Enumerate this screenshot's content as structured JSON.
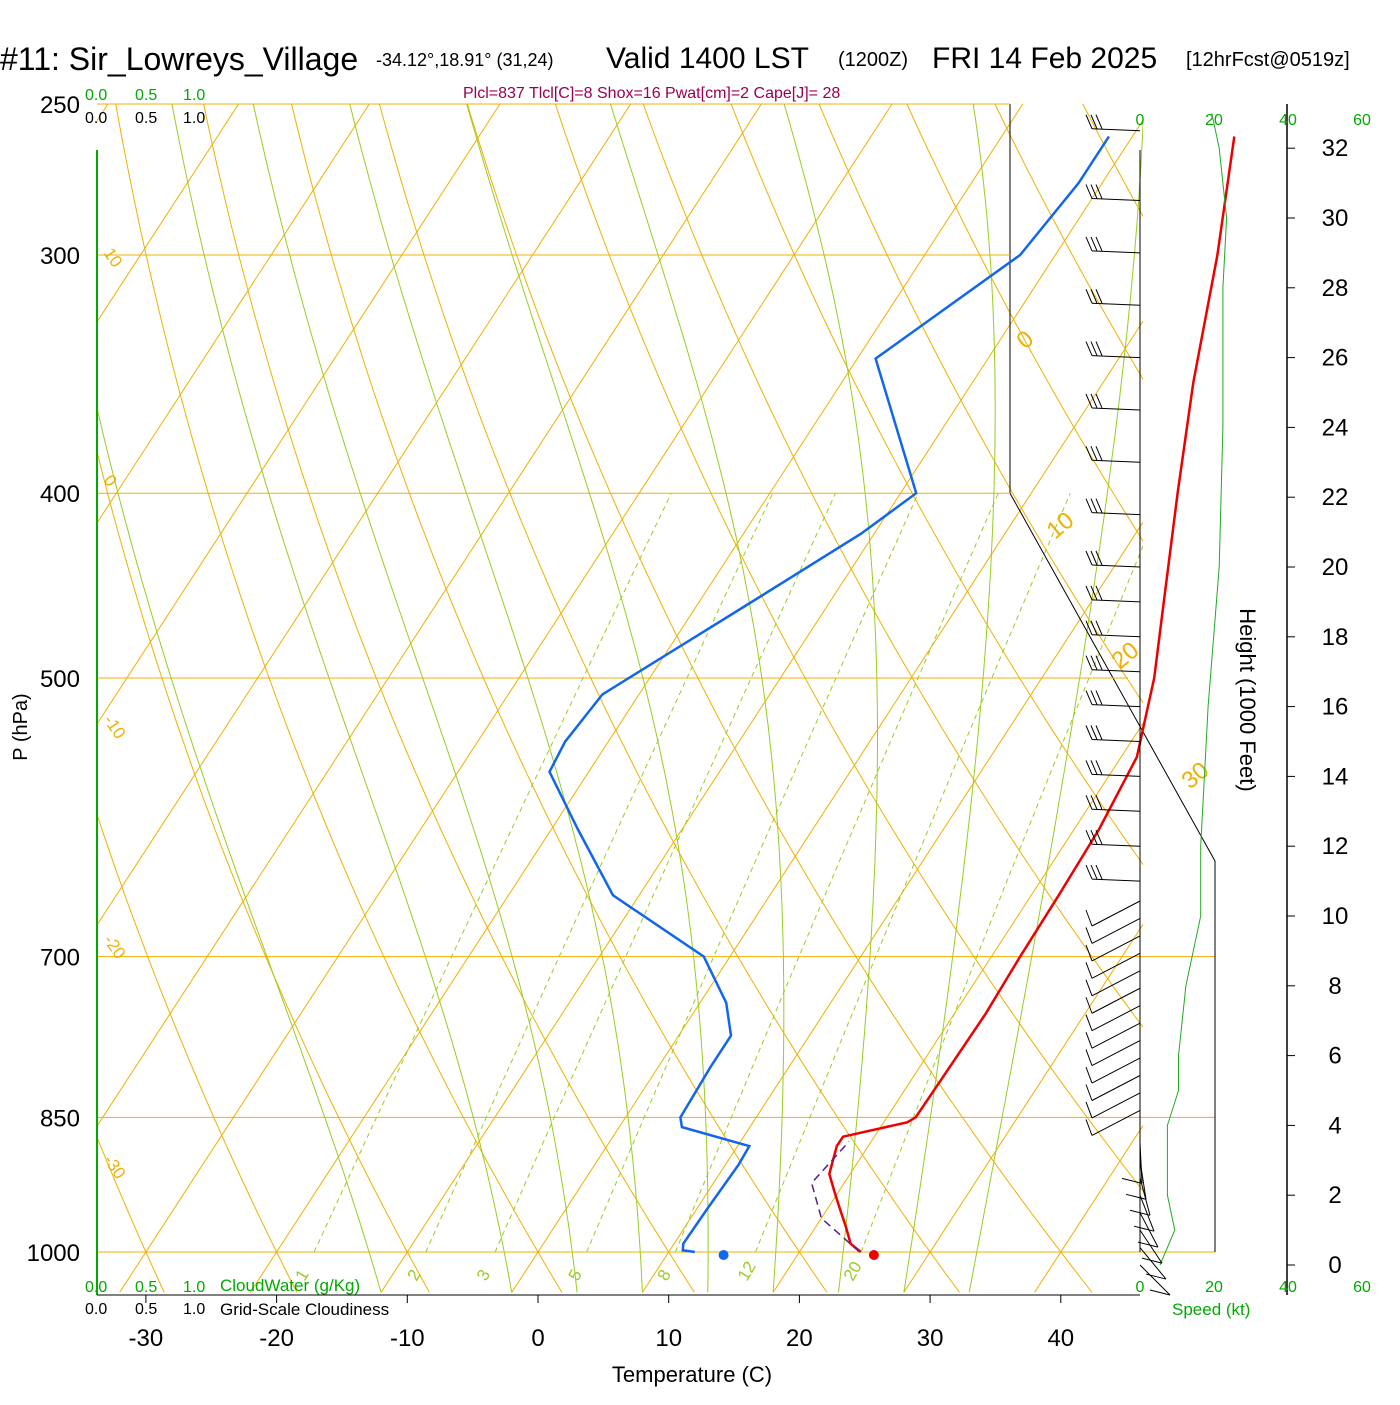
{
  "header": {
    "station": "#11: Sir_Lowreys_Village",
    "location": "-34.12°,18.91° (31,24)",
    "valid": "Valid 1400 LST",
    "utc": "(1200Z)",
    "date": "FRI 14 Feb 2025",
    "forecast": "[12hrFcst@0519z]",
    "indices": "Plcl=837 Tlcl[C]=8 Shox=16 Pwat[cm]=2 Cape[J]= 28"
  },
  "colors": {
    "temperature": "#ee0000",
    "dewpoint": "#1166ee",
    "isobar_isotherm": "#f0b000",
    "moist_adiabat": "#99cc22",
    "mixing_ratio": "#99cc22",
    "green_text": "#00aa00",
    "indices_text": "#990055",
    "parcel": "#552288",
    "speed_profile": "#22aa22"
  },
  "chart_data": {
    "type": "skew-t",
    "title": "#11: Sir_Lowreys_Village",
    "xlabel": "Temperature (C)",
    "ylabel": "P (hPa)",
    "right_axis_label": "Height (1000 Feet)",
    "x_ticks": [
      -30,
      -20,
      -10,
      0,
      10,
      20,
      30,
      40
    ],
    "pressure_levels": [
      250,
      300,
      400,
      500,
      700,
      850,
      1000
    ],
    "height_ticks": [
      0,
      2,
      4,
      6,
      8,
      10,
      12,
      14,
      16,
      18,
      20,
      22,
      24,
      26,
      28,
      30,
      32
    ],
    "isotherm_labels": [
      "10",
      "0",
      "-10",
      "-20",
      "-30"
    ],
    "isotherm_labels_right": [
      "0",
      "10",
      "20",
      "30"
    ],
    "mixing_ratio_labels": [
      "1",
      "2",
      "3",
      "5",
      "8",
      "12",
      "20"
    ],
    "cloud_scale_top_green": [
      "0.0",
      "0.5",
      "1.0"
    ],
    "cloud_scale_top_black": [
      "0.0",
      "0.5",
      "1.0"
    ],
    "cloud_scale_bottom_green": [
      "0.0",
      "0.5",
      "1.0"
    ],
    "cloud_scale_bottom_black": [
      "0.0",
      "0.5",
      "1.0"
    ],
    "cloudwater_label": "CloudWater (g/Kg)",
    "cloudiness_label": "Grid-Scale Cloudiness",
    "speed_ticks": [
      "0",
      "20",
      "40",
      "60"
    ],
    "speed_label": "Speed (kt)",
    "temperature_profile": [
      [
        1000,
        24.7
      ],
      [
        990,
        23.5
      ],
      [
        970,
        22.3
      ],
      [
        950,
        21.0
      ],
      [
        930,
        19.7
      ],
      [
        910,
        18.4
      ],
      [
        880,
        17.6
      ],
      [
        870,
        17.6
      ],
      [
        855,
        21.8
      ],
      [
        850,
        22.2
      ],
      [
        800,
        22.3
      ],
      [
        750,
        22.4
      ],
      [
        700,
        22.2
      ],
      [
        650,
        22.1
      ],
      [
        600,
        21.9
      ],
      [
        550,
        21.2
      ],
      [
        500,
        18.6
      ],
      [
        450,
        15.1
      ],
      [
        400,
        11.2
      ],
      [
        350,
        6.9
      ],
      [
        300,
        2.4
      ],
      [
        260,
        -2.2
      ]
    ],
    "dewpoint_profile": [
      [
        1000,
        12.0
      ],
      [
        998,
        11.0
      ],
      [
        990,
        10.7
      ],
      [
        950,
        10.8
      ],
      [
        900,
        11.0
      ],
      [
        880,
        10.9
      ],
      [
        860,
        4.8
      ],
      [
        850,
        4.2
      ],
      [
        800,
        4.0
      ],
      [
        770,
        4.0
      ],
      [
        740,
        2.0
      ],
      [
        700,
        -2.0
      ],
      [
        650,
        -12.0
      ],
      [
        600,
        -18.0
      ],
      [
        560,
        -23.0
      ],
      [
        540,
        -23.3
      ],
      [
        510,
        -22.8
      ],
      [
        460,
        -16.5
      ],
      [
        420,
        -11.0
      ],
      [
        400,
        -8.8
      ],
      [
        340,
        -18.6
      ],
      [
        300,
        -12.7
      ],
      [
        275,
        -11.8
      ],
      [
        260,
        -11.8
      ]
    ],
    "parcel_profile": [
      [
        1000,
        24.6
      ],
      [
        960,
        20.0
      ],
      [
        920,
        17.5
      ],
      [
        875,
        18.3
      ]
    ],
    "surface_temperature": 25.7,
    "surface_dewpoint": 14.2,
    "wind_speed_profile": [
      [
        0,
        0
      ],
      [
        1,
        4
      ],
      [
        2,
        2
      ],
      [
        3,
        2
      ],
      [
        4,
        2
      ],
      [
        5,
        5
      ],
      [
        6,
        5
      ],
      [
        8,
        7
      ],
      [
        10,
        11
      ],
      [
        12,
        11
      ],
      [
        16,
        13
      ],
      [
        20,
        16
      ],
      [
        24,
        17
      ],
      [
        28,
        17
      ],
      [
        30,
        18
      ],
      [
        32,
        16
      ],
      [
        33,
        14
      ]
    ],
    "wind_barb_heights": [
      0,
      0.5,
      1,
      1.5,
      2,
      2.5,
      3,
      3.5,
      4,
      4.5,
      5,
      5.5,
      6,
      6.5,
      7,
      7.5,
      8,
      8.5,
      9,
      9.5,
      10,
      11,
      12,
      13,
      14,
      15,
      16,
      17,
      18,
      19,
      20,
      21.5,
      23,
      24.5,
      26,
      27.5,
      29,
      30.5,
      32.5
    ],
    "xlim": [
      -33,
      46
    ],
    "ylim": [
      1050,
      250
    ]
  }
}
